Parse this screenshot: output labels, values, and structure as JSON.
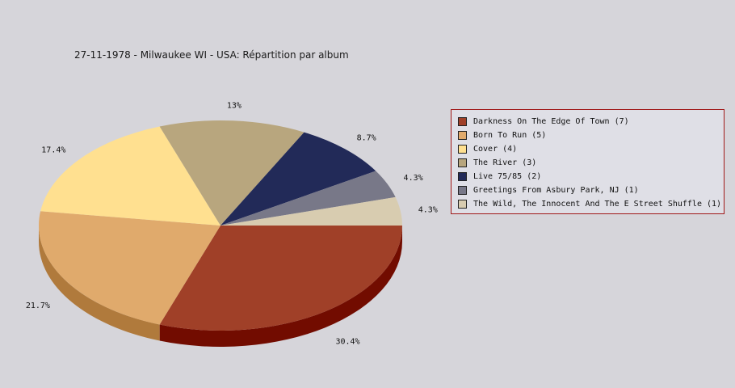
{
  "chart_data": {
    "type": "pie",
    "title": "27-11-1978 - Milwaukee WI - USA:  Répartition par album",
    "slices": [
      {
        "label": "Darkness On The Edge Of Town (7)",
        "count": 7,
        "percent_label": "30.4%",
        "color": "#a04028",
        "side_color": "#720c00"
      },
      {
        "label": "Born To Run (5)",
        "count": 5,
        "percent_label": "21.7%",
        "color": "#e0aa6c",
        "side_color": "#b07a3c"
      },
      {
        "label": "Cover (4)",
        "count": 4,
        "percent_label": "17.4%",
        "color": "#ffe090",
        "side_color": "#cfb060"
      },
      {
        "label": "The River (3)",
        "count": 3,
        "percent_label": "13%",
        "color": "#b8a67e",
        "side_color": "#88764e"
      },
      {
        "label": "Live 75/85 (2)",
        "count": 2,
        "percent_label": "8.7%",
        "color": "#222a58",
        "side_color": "#101838"
      },
      {
        "label": "Greetings From Asbury Park, NJ (1)",
        "count": 1,
        "percent_label": "4.3%",
        "color": "#787888",
        "side_color": "#505060"
      },
      {
        "label": "The Wild, The Innocent And The E Street Shuffle (1)",
        "count": 1,
        "percent_label": "4.3%",
        "color": "#d8ccb0",
        "side_color": "#a89c80"
      }
    ],
    "legend_position": "right"
  }
}
